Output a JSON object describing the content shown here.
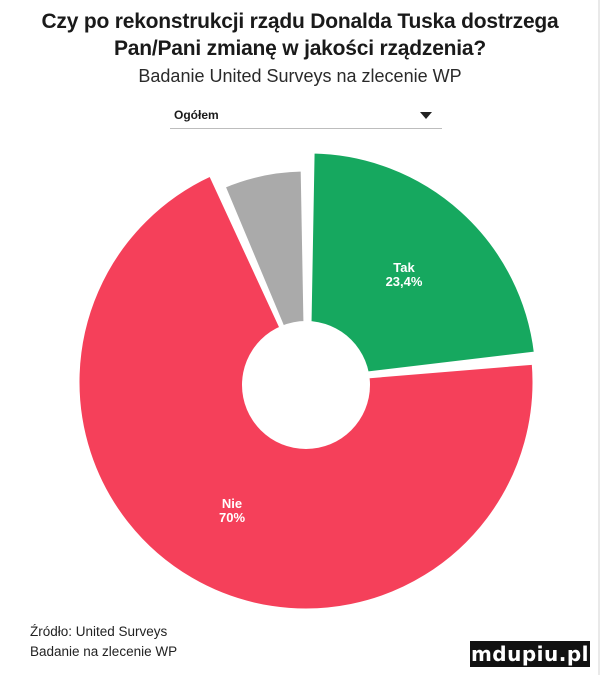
{
  "title": "Czy po rekonstrukcji rządu Donalda Tuska dostrzega Pan/Pani zmianę w jakości rządzenia?",
  "subtitle": "Badanie United Surveys na zlecenie WP",
  "dropdown": {
    "selected": "Ogółem"
  },
  "source": {
    "line1": "Źródło: United Surveys",
    "line2": "Badanie na zlecenie WP"
  },
  "watermark": "mdupiu.pl",
  "chart_data": {
    "type": "pie",
    "donut": true,
    "slices": [
      {
        "label": "Tak",
        "value_label": "23,4%",
        "value": 23.4,
        "color": "#16a85f"
      },
      {
        "label": "Nie",
        "value_label": "70%",
        "value": 70,
        "color": "#f5405a"
      },
      {
        "label": "",
        "value_label": "",
        "value": 6.6,
        "color": "#aaaaaa"
      }
    ]
  }
}
